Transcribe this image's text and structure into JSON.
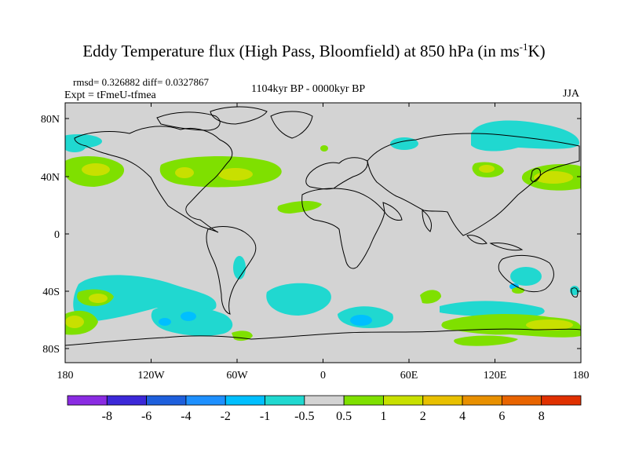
{
  "title": {
    "main": "Eddy Temperature flux (High Pass, Bloomfield) at 850 hPa (in ms",
    "sup": "-1",
    "tail": "K)"
  },
  "stats": "rmsd= 0.326882 diff= 0.0327867",
  "period": "1104kyr BP - 0000kyr BP",
  "experiment": "Expt = tFmeU-tfmea",
  "season": "JJA",
  "lat_ticks": [
    "80N",
    "40N",
    "0",
    "40S",
    "80S"
  ],
  "lon_ticks": [
    "180",
    "120W",
    "60W",
    "0",
    "60E",
    "120E",
    "180"
  ],
  "colorbar": {
    "colors": [
      "#8a2be2",
      "#3c28d8",
      "#1e5fdc",
      "#1e90ff",
      "#00bfff",
      "#20d8d0",
      "#d3d3d3",
      "#7fe000",
      "#c8e000",
      "#e8c000",
      "#e89000",
      "#e86400",
      "#e03000"
    ],
    "labels": [
      "-8",
      "-6",
      "-4",
      "-2",
      "-1",
      "-0.5",
      "0.5",
      "1",
      "2",
      "4",
      "6",
      "8"
    ]
  },
  "colors": {
    "land_ocean": "#d3d3d3",
    "coast": "#000000"
  }
}
